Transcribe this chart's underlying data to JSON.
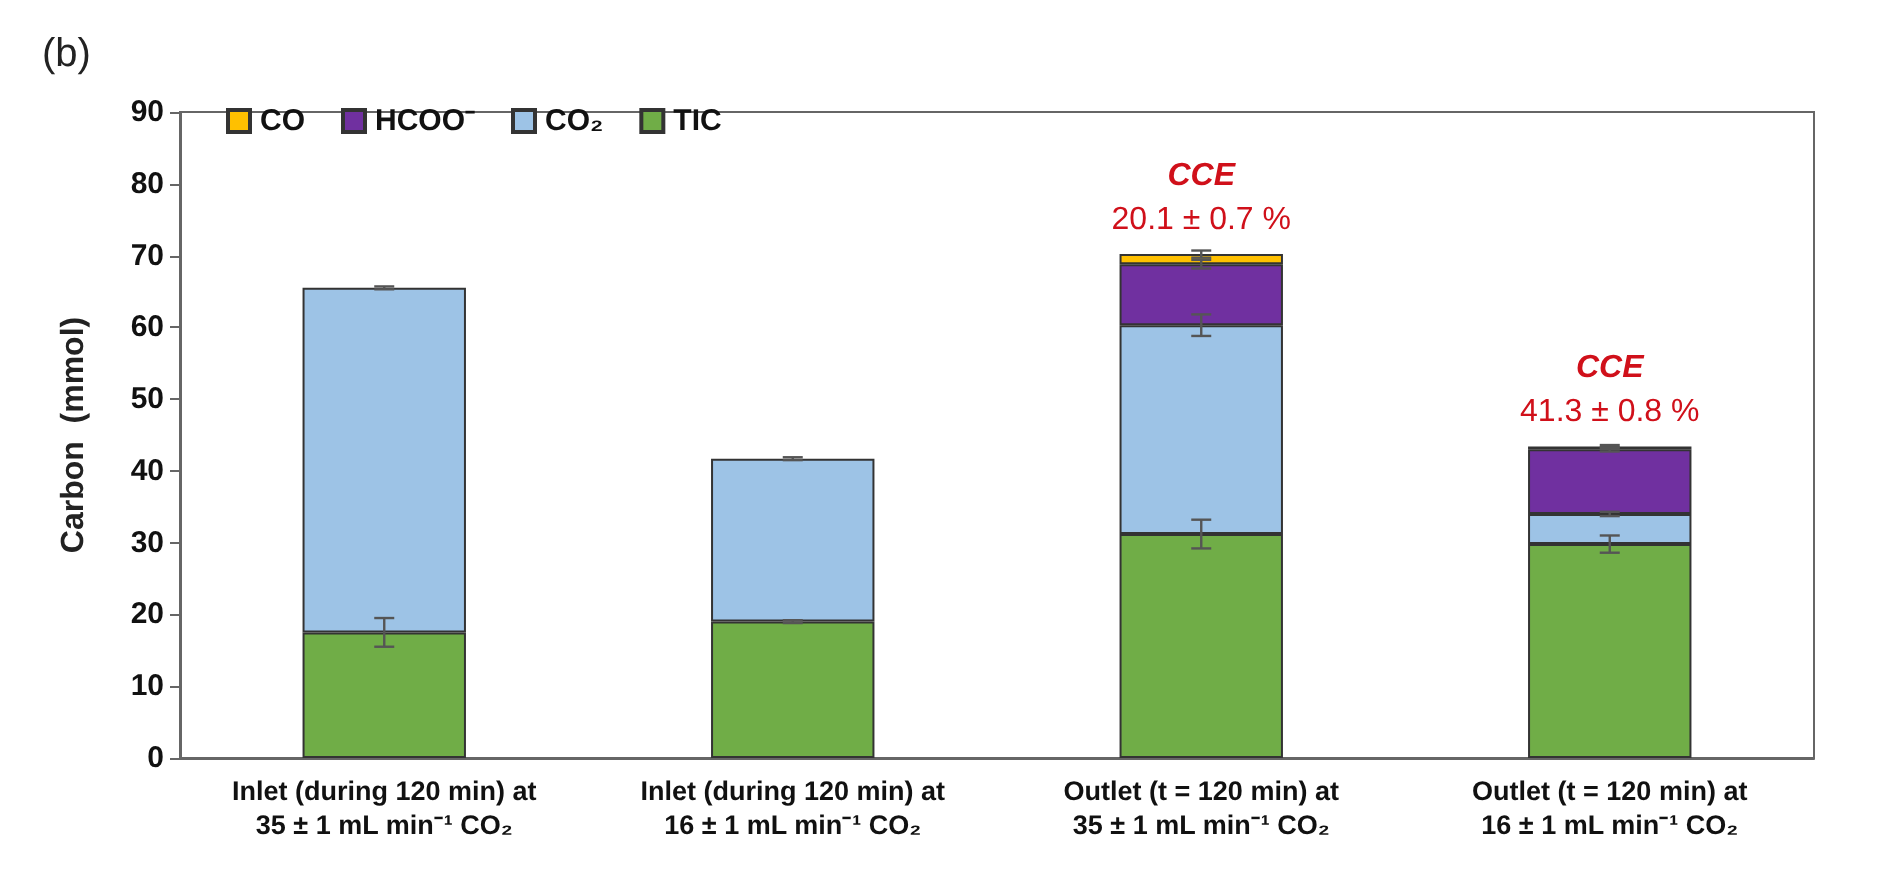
{
  "chart_data": {
    "type": "bar",
    "stacked": true,
    "ylabel": "Carbon  (mmol)",
    "categories": [
      "Inlet (during 120 min) at\n35 ± 1 mL min⁻¹ CO₂",
      "Inlet (during 120 min) at\n16 ± 1 mL min⁻¹ CO₂",
      "Outlet (t = 120 min) at\n35 ± 1 mL min⁻¹ CO₂",
      "Outlet (t = 120 min) at\n16 ± 1 mL min⁻¹ CO₂"
    ],
    "series": [
      {
        "name": "TIC",
        "color": "#70ad47",
        "values": [
          17.5,
          19.0,
          31.2,
          29.8
        ],
        "errors": [
          2.0,
          0.2,
          2.0,
          1.2
        ]
      },
      {
        "name": "CO₂",
        "color": "#9dc3e6",
        "values": [
          48.0,
          22.7,
          29.1,
          4.2
        ],
        "errors": [
          0.2,
          0.2,
          1.5,
          0.3
        ]
      },
      {
        "name": "HCOO⁻",
        "color": "#7030a0",
        "values": [
          null,
          null,
          8.5,
          9.0
        ],
        "errors": [
          null,
          null,
          0.6,
          0.3
        ]
      },
      {
        "name": "CO",
        "color": "#ffc000",
        "values": [
          null,
          null,
          1.4,
          0.4
        ],
        "errors": [
          null,
          null,
          0.5,
          0.2
        ]
      }
    ],
    "ylim": [
      0,
      90
    ],
    "yticks": [
      0,
      10,
      20,
      30,
      40,
      50,
      60,
      70,
      80,
      90
    ],
    "grid": false,
    "legend": "top left",
    "annotations": [
      "(b)",
      {
        "text": "CCE\n20.1 ± 0.7 %",
        "x": "Outlet (t = 120 min) at\n35 ± 1 mL min⁻¹ CO₂",
        "y": 70.2
      },
      {
        "text": "CCE\n41.3 ± 0.8 %",
        "x": "Outlet (t = 120 min) at\n16 ± 1 mL min⁻¹ CO₂",
        "y": 43.4
      }
    ]
  }
}
